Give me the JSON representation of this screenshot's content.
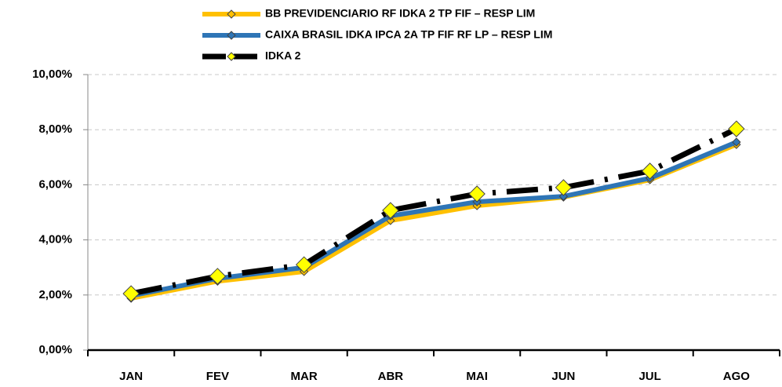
{
  "chart_data": {
    "type": "line",
    "categories": [
      "JAN",
      "FEV",
      "MAR",
      "ABR",
      "MAI",
      "JUN",
      "JUL",
      "AGO"
    ],
    "series": [
      {
        "name": "BB PREVIDENCIARIO RF IDKA 2 TP FIF – RESP LIM",
        "color": "#FFC000",
        "marker_color": "#FFC000",
        "values": [
          1.88,
          2.5,
          2.85,
          4.7,
          5.24,
          5.55,
          6.18,
          7.46
        ]
      },
      {
        "name": "CAIXA BRASIL IDKA IPCA 2A TP FIF RF LP – RESP LIM",
        "color": "#2E75B6",
        "marker_color": "#2E75B6",
        "values": [
          1.97,
          2.6,
          3.0,
          4.87,
          5.38,
          5.58,
          6.24,
          7.55
        ]
      },
      {
        "name": "IDKA 2",
        "color": "#000000",
        "marker_color": "#FFFF00",
        "line_style": "dashed",
        "values": [
          2.05,
          2.68,
          3.1,
          5.07,
          5.67,
          5.9,
          6.5,
          8.03
        ]
      }
    ],
    "ylim": [
      0,
      10
    ],
    "yticks": [
      {
        "value": 0,
        "label": "0,00%"
      },
      {
        "value": 2,
        "label": "2,00%"
      },
      {
        "value": 4,
        "label": "4,00%"
      },
      {
        "value": 6,
        "label": "6,00%"
      },
      {
        "value": 8,
        "label": "8,00%"
      },
      {
        "value": 10,
        "label": "10,00%"
      }
    ],
    "grid": true
  }
}
